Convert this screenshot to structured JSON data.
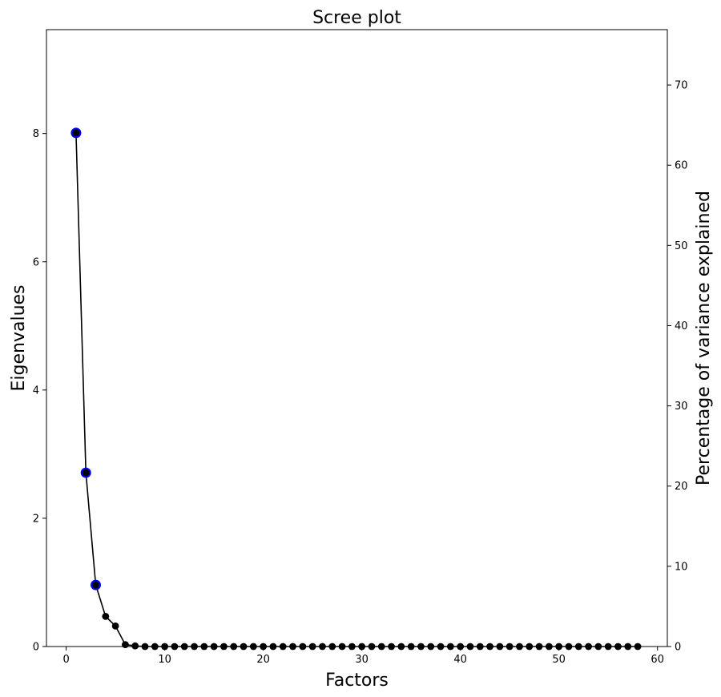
{
  "chart_data": {
    "type": "line",
    "title": "Scree plot",
    "xlabel": "Factors",
    "ylabel": "Eigenvalues",
    "y2label": "Percentage of variance explained",
    "xlim": [
      -2,
      61
    ],
    "ylim": [
      0,
      9.62
    ],
    "y2lim": [
      0,
      76.9
    ],
    "xticks": [
      0,
      10,
      20,
      30,
      40,
      50,
      60
    ],
    "yticks": [
      0,
      2,
      4,
      6,
      8
    ],
    "y2ticks": [
      0,
      10,
      20,
      30,
      40,
      50,
      60,
      70
    ],
    "grid": false,
    "series": [
      {
        "x": [
          1,
          2,
          3,
          4,
          5,
          6,
          7,
          8,
          9,
          10,
          11,
          12,
          13,
          14,
          15,
          16,
          17,
          18,
          19,
          20,
          21,
          22,
          23,
          24,
          25,
          26,
          27,
          28,
          29,
          30,
          31,
          32,
          33,
          34,
          35,
          36,
          37,
          38,
          39,
          40,
          41,
          42,
          43,
          44,
          45,
          46,
          47,
          48,
          49,
          50,
          51,
          52,
          53,
          54,
          55,
          56,
          57,
          58
        ],
        "values": [
          8.01,
          2.71,
          0.96,
          0.47,
          0.32,
          0.03,
          0.01,
          0,
          0,
          0,
          0,
          0,
          0,
          0,
          0,
          0,
          0,
          0,
          0,
          0,
          0,
          0,
          0,
          0,
          0,
          0,
          0,
          0,
          0,
          0,
          0,
          0,
          0,
          0,
          0,
          0,
          0,
          0,
          0,
          0,
          0,
          0,
          0,
          0,
          0,
          0,
          0,
          0,
          0,
          0,
          0,
          0,
          0,
          0,
          0,
          0,
          0,
          0
        ],
        "color": "#000000",
        "highlighted_x": [
          1,
          2,
          3
        ],
        "highlight_color": "#0000ff"
      }
    ]
  }
}
